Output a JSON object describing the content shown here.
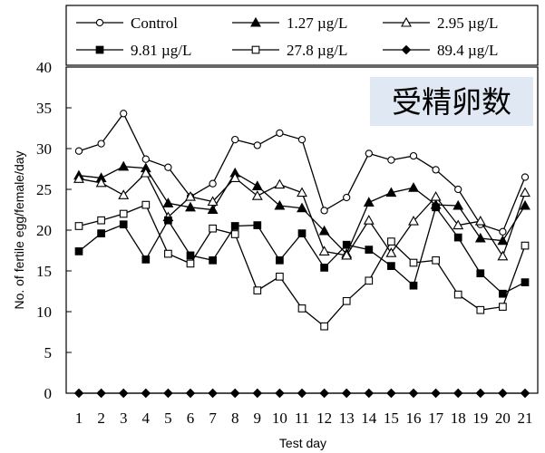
{
  "chart_data": {
    "type": "line",
    "title": "",
    "badge": "受精卵数",
    "xlabel": "Test day",
    "ylabel": "No. of fertile egg/female/day",
    "ylim": [
      0,
      40
    ],
    "yticks": [
      0,
      5,
      10,
      15,
      20,
      25,
      30,
      35,
      40
    ],
    "categories": [
      "1",
      "2",
      "3",
      "4",
      "5",
      "6",
      "7",
      "8",
      "9",
      "10",
      "11",
      "12",
      "13",
      "14",
      "15",
      "16",
      "17",
      "18",
      "19",
      "20",
      "21"
    ],
    "grid": false,
    "legend_position": "top",
    "series": [
      {
        "name": "Control",
        "marker": "open-circle",
        "values": [
          29.7,
          30.6,
          34.3,
          28.7,
          27.7,
          24.1,
          25.7,
          31.1,
          30.4,
          31.9,
          31.1,
          22.4,
          24.0,
          29.4,
          28.6,
          29.1,
          27.4,
          25.0,
          20.7,
          19.8,
          26.5
        ]
      },
      {
        "name": "1.27 µg/L",
        "marker": "filled-triangle",
        "values": [
          26.7,
          26.4,
          27.8,
          27.6,
          23.3,
          22.8,
          22.5,
          27.0,
          25.4,
          23.0,
          22.7,
          19.9,
          17.1,
          23.4,
          24.6,
          25.2,
          23.1,
          23.0,
          19.0,
          18.7,
          23.0
        ]
      },
      {
        "name": "2.95 µg/L",
        "marker": "open-triangle",
        "values": [
          26.3,
          25.8,
          24.3,
          27.0,
          21.6,
          24.1,
          23.5,
          26.4,
          24.2,
          25.6,
          24.6,
          17.4,
          16.9,
          21.2,
          17.2,
          21.1,
          24.1,
          20.6,
          21.1,
          16.8,
          24.6
        ]
      },
      {
        "name": "9.81 µg/L",
        "marker": "filled-square",
        "values": [
          17.4,
          19.6,
          20.7,
          16.4,
          21.2,
          16.9,
          16.3,
          20.5,
          20.6,
          16.3,
          19.6,
          15.4,
          18.2,
          17.6,
          15.6,
          13.2,
          22.8,
          19.1,
          14.7,
          12.2,
          13.6
        ]
      },
      {
        "name": "27.8 µg/L",
        "marker": "open-square",
        "values": [
          20.5,
          21.2,
          22.0,
          23.1,
          17.1,
          15.9,
          20.2,
          19.5,
          12.6,
          14.3,
          10.4,
          8.2,
          11.3,
          13.8,
          18.6,
          16.0,
          16.3,
          12.1,
          10.2,
          10.6,
          18.1
        ]
      },
      {
        "name": "89.4 µg/L",
        "marker": "filled-diamond",
        "values": [
          0,
          0,
          0,
          0,
          0,
          0,
          0,
          0,
          0,
          0,
          0,
          0,
          0,
          0,
          0,
          0,
          0,
          0,
          0,
          0,
          0
        ]
      }
    ]
  }
}
